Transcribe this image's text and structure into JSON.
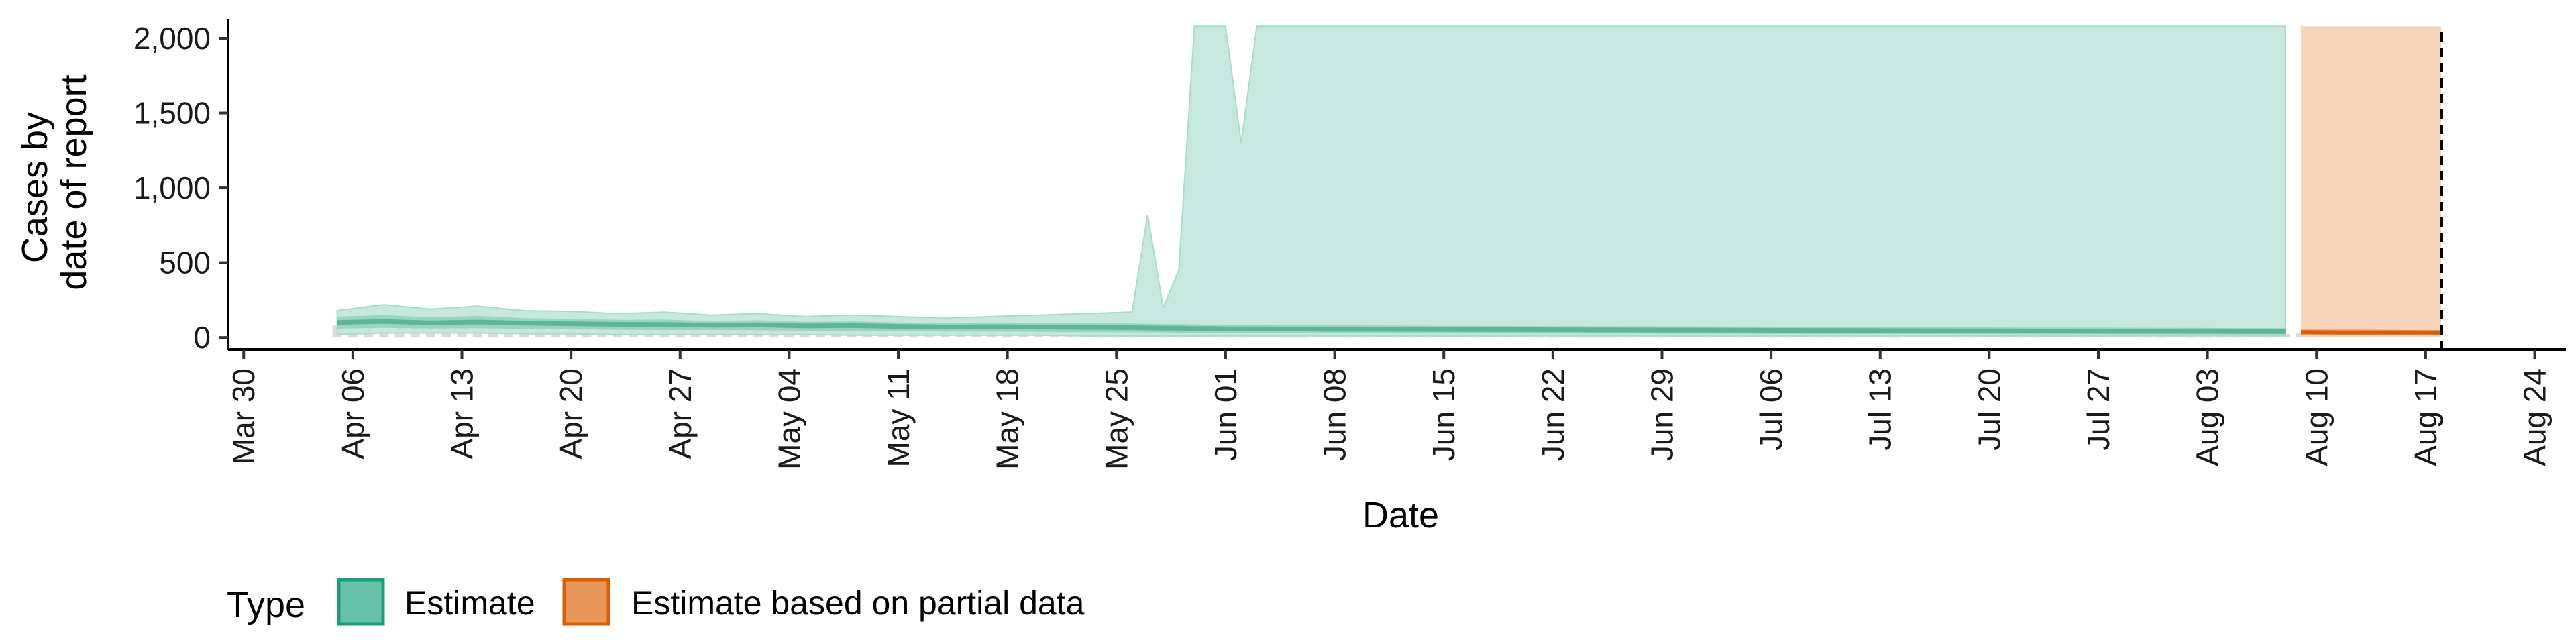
{
  "chart_data": {
    "type": "area",
    "title": "",
    "xlabel": "Date",
    "ylabel_lines": [
      "Cases by",
      "date of report"
    ],
    "x_ticks": [
      "Mar 30",
      "Apr 06",
      "Apr 13",
      "Apr 20",
      "Apr 27",
      "May 04",
      "May 11",
      "May 18",
      "May 25",
      "Jun 01",
      "Jun 08",
      "Jun 15",
      "Jun 22",
      "Jun 29",
      "Jul 06",
      "Jul 13",
      "Jul 20",
      "Jul 27",
      "Aug 03",
      "Aug 10",
      "Aug 17",
      "Aug 24"
    ],
    "xlim": [
      "2020-03-29",
      "2020-08-26"
    ],
    "y_ticks": [
      0,
      500,
      1000,
      1500,
      2000
    ],
    "y_tick_labels": [
      "0",
      "500",
      "1,000",
      "1,500",
      "2,000"
    ],
    "ylim": [
      -80,
      2130
    ],
    "vline_date": "2020-08-18",
    "grid": false,
    "legend": {
      "title": "Type",
      "position": "bottom-left",
      "items": [
        {
          "label": "Estimate",
          "fill": "#66c2a5",
          "border": "#1b9e77"
        },
        {
          "label": "Estimate based on partial data",
          "fill": "#e8975a",
          "border": "#d95f02"
        }
      ]
    },
    "colors": {
      "estimate_light": "#c3e7dd",
      "estimate_mid": "#94d3bf",
      "estimate_dark": "#5fb696",
      "partial_light": "#f5d3b7",
      "partial_dark": "#e8a070",
      "observed_bar": "#bdbdbd"
    },
    "series": [
      {
        "name": "Estimate",
        "dates": [
          "2020-04-05",
          "2020-04-08",
          "2020-04-11",
          "2020-04-14",
          "2020-04-17",
          "2020-04-20",
          "2020-04-23",
          "2020-04-26",
          "2020-04-29",
          "2020-05-02",
          "2020-05-05",
          "2020-05-08",
          "2020-05-11",
          "2020-05-14",
          "2020-05-17",
          "2020-05-20",
          "2020-05-23",
          "2020-05-26",
          "2020-05-27",
          "2020-05-28",
          "2020-05-29",
          "2020-05-30",
          "2020-05-31",
          "2020-06-01",
          "2020-06-02",
          "2020-06-03",
          "2020-06-08",
          "2020-06-15",
          "2020-06-22",
          "2020-06-29",
          "2020-07-06",
          "2020-07-13",
          "2020-07-20",
          "2020-07-27",
          "2020-08-03",
          "2020-08-08"
        ],
        "outer_lower": [
          20,
          30,
          30,
          30,
          25,
          25,
          20,
          20,
          20,
          20,
          20,
          15,
          15,
          15,
          15,
          15,
          10,
          10,
          10,
          10,
          10,
          10,
          10,
          10,
          10,
          10,
          10,
          10,
          10,
          10,
          10,
          10,
          10,
          10,
          10,
          10
        ],
        "outer_upper": [
          180,
          220,
          190,
          210,
          180,
          175,
          160,
          170,
          150,
          160,
          140,
          150,
          140,
          130,
          140,
          150,
          160,
          170,
          820,
          200,
          450,
          2080,
          2080,
          2080,
          1300,
          2080,
          2080,
          2080,
          2080,
          2080,
          2080,
          2080,
          2080,
          2080,
          2080,
          2080
        ],
        "inner_lower": [
          60,
          65,
          60,
          62,
          58,
          55,
          52,
          50,
          50,
          48,
          46,
          45,
          42,
          40,
          40,
          38,
          36,
          35,
          34,
          33,
          32,
          32,
          31,
          30,
          30,
          30,
          28,
          27,
          26,
          25,
          24,
          23,
          22,
          21,
          20,
          20
        ],
        "inner_upper": [
          140,
          150,
          135,
          145,
          130,
          125,
          118,
          120,
          110,
          115,
          105,
          108,
          100,
          96,
          100,
          98,
          95,
          94,
          92,
          90,
          90,
          88,
          86,
          85,
          85,
          85,
          82,
          78,
          76,
          74,
          72,
          70,
          68,
          66,
          64,
          62
        ],
        "median": [
          100,
          108,
          98,
          104,
          96,
          92,
          88,
          87,
          82,
          84,
          78,
          80,
          74,
          70,
          72,
          70,
          68,
          66,
          64,
          62,
          62,
          60,
          60,
          58,
          58,
          58,
          56,
          54,
          52,
          50,
          48,
          46,
          44,
          42,
          41,
          40
        ]
      },
      {
        "name": "Estimate based on partial data",
        "dates": [
          "2020-08-09",
          "2020-08-12",
          "2020-08-15",
          "2020-08-18"
        ],
        "outer_lower": [
          5,
          5,
          5,
          5
        ],
        "outer_upper": [
          2080,
          2080,
          2080,
          2080
        ],
        "inner_lower": [
          18,
          18,
          17,
          16
        ],
        "inner_upper": [
          55,
          54,
          52,
          50
        ],
        "median": [
          35,
          34,
          34,
          33
        ]
      }
    ],
    "observed_dates_start": "2020-04-05",
    "observed": [
      80,
      82,
      78,
      84,
      76,
      72,
      80,
      74,
      70,
      78,
      72,
      68,
      75,
      70,
      66,
      72,
      68,
      64,
      70,
      66,
      62,
      68,
      64,
      60,
      66,
      62,
      58,
      64,
      60,
      56,
      62,
      58,
      55,
      60,
      56,
      54,
      58,
      55,
      52,
      57,
      54,
      50,
      56,
      52,
      49,
      54,
      51,
      48,
      53,
      50,
      47,
      52,
      49,
      46,
      51,
      48,
      45,
      50,
      47,
      44,
      49,
      46,
      43,
      48,
      45,
      42,
      47,
      44,
      42,
      46,
      43,
      41,
      45,
      42,
      40,
      44,
      41,
      39,
      43,
      40,
      38,
      42,
      39,
      37,
      41,
      38,
      36,
      40,
      37,
      35,
      39,
      36,
      34,
      38,
      35,
      33,
      37,
      34,
      32,
      36,
      33,
      31,
      35,
      32,
      30,
      34,
      31,
      29,
      33,
      30,
      28,
      32,
      29,
      27,
      31,
      28,
      26,
      30,
      27,
      25,
      29,
      26,
      24,
      28,
      25,
      23,
      27,
      24,
      22,
      26,
      23
    ]
  }
}
